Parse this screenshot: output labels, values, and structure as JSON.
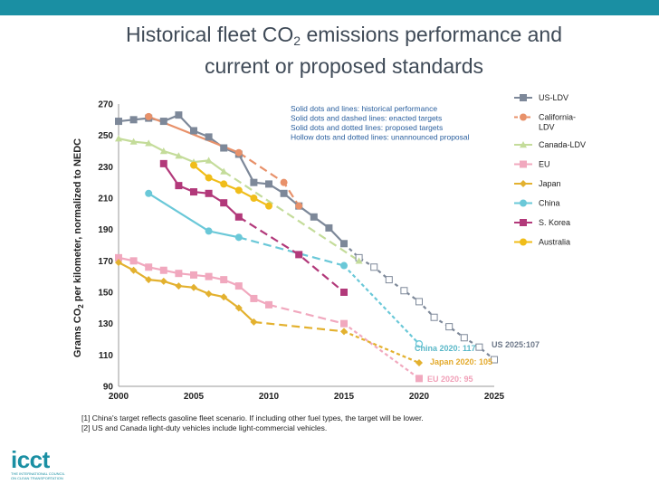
{
  "title": {
    "part1": "Historical fleet CO",
    "sub": "2",
    "part2": " emissions performance and",
    "line2": "current or proposed standards"
  },
  "colors": {
    "topbar": "#1a8fa3",
    "US-LDV": "#7d8899",
    "California-LDV": "#e8916a",
    "Canada-LDV": "#c4dc9a",
    "EU": "#f1a8be",
    "Japan": "#e3b12f",
    "China": "#6ac8d8",
    "S. Korea": "#b2397a",
    "Australia": "#f0bd1a"
  },
  "notes": [
    "Solid dots and lines: historical performance",
    "Solid dots and dashed lines: enacted targets",
    "Solid dots and dotted lines: proposed targets",
    "Hollow dots and dotted lines: unannounced proposal"
  ],
  "footnotes": [
    "[1] China's target reflects gasoline fleet scenario. If including other fuel types, the target will be lower.",
    "[2] US and Canada light-duty vehicles include light-commercial vehicles."
  ],
  "logo": {
    "word": "icct",
    "tagline": "THE INTERNATIONAL COUNCIL ON CLEAN TRANSPORTATION"
  },
  "chart_data": {
    "type": "line",
    "title": "",
    "ylabel_parts": [
      "Grams CO",
      "2",
      " per kilometer, normalized to NEDC"
    ],
    "xlim": [
      2000,
      2025
    ],
    "ylim": [
      90,
      270
    ],
    "xticks": [
      2000,
      2005,
      2010,
      2015,
      2020,
      2025
    ],
    "yticks": [
      90,
      110,
      130,
      150,
      170,
      190,
      210,
      230,
      250,
      270
    ],
    "grid": false,
    "legend_position": "right",
    "series": [
      {
        "name": "US-LDV",
        "marker": "square",
        "historical": [
          [
            2000,
            259
          ],
          [
            2001,
            260
          ],
          [
            2002,
            261
          ],
          [
            2003,
            259
          ],
          [
            2004,
            263
          ],
          [
            2005,
            253
          ],
          [
            2006,
            249
          ],
          [
            2007,
            242
          ],
          [
            2008,
            238
          ],
          [
            2009,
            220
          ],
          [
            2010,
            219
          ],
          [
            2011,
            213
          ],
          [
            2012,
            205
          ],
          [
            2013,
            198
          ],
          [
            2014,
            191
          ],
          [
            2015,
            181
          ]
        ],
        "enacted": [
          [
            2015,
            181
          ],
          [
            2016,
            172
          ],
          [
            2017,
            166
          ],
          [
            2018,
            158
          ],
          [
            2019,
            151
          ],
          [
            2020,
            144
          ],
          [
            2021,
            134
          ],
          [
            2022,
            128
          ],
          [
            2023,
            121
          ],
          [
            2024,
            115
          ],
          [
            2025,
            107
          ]
        ],
        "enacted_marker": "hollow"
      },
      {
        "name": "California-LDV",
        "marker": "circle",
        "historical": [
          [
            2002,
            262
          ],
          [
            2008,
            239
          ]
        ],
        "enacted": [
          [
            2008,
            239
          ],
          [
            2011,
            220
          ],
          [
            2012,
            205
          ]
        ]
      },
      {
        "name": "Canada-LDV",
        "marker": "triangle",
        "historical": [
          [
            2000,
            248
          ],
          [
            2001,
            246
          ],
          [
            2002,
            245
          ],
          [
            2003,
            240
          ],
          [
            2004,
            237
          ],
          [
            2005,
            233
          ],
          [
            2006,
            234
          ],
          [
            2007,
            227
          ]
        ],
        "enacted": [
          [
            2007,
            227
          ],
          [
            2016,
            170
          ]
        ]
      },
      {
        "name": "EU",
        "marker": "square",
        "historical": [
          [
            2000,
            172
          ],
          [
            2001,
            170
          ],
          [
            2002,
            166
          ],
          [
            2003,
            164
          ],
          [
            2004,
            162
          ],
          [
            2005,
            161
          ],
          [
            2006,
            160
          ],
          [
            2007,
            158
          ],
          [
            2008,
            154
          ],
          [
            2009,
            146
          ],
          [
            2010,
            142
          ]
        ],
        "enacted": [
          [
            2010,
            142
          ],
          [
            2015,
            130
          ]
        ],
        "proposed": [
          [
            2015,
            130
          ],
          [
            2020,
            95
          ]
        ]
      },
      {
        "name": "Japan",
        "marker": "diamond",
        "historical": [
          [
            2000,
            169
          ],
          [
            2001,
            164
          ],
          [
            2002,
            158
          ],
          [
            2003,
            157
          ],
          [
            2004,
            154
          ],
          [
            2005,
            153
          ],
          [
            2006,
            149
          ],
          [
            2007,
            147
          ],
          [
            2008,
            140
          ],
          [
            2009,
            131
          ]
        ],
        "enacted": [
          [
            2009,
            131
          ],
          [
            2015,
            125
          ]
        ],
        "proposed": [
          [
            2015,
            125
          ],
          [
            2020,
            105
          ]
        ]
      },
      {
        "name": "China",
        "marker": "circle",
        "historical": [
          [
            2002,
            213
          ],
          [
            2006,
            189
          ],
          [
            2008,
            185
          ]
        ],
        "enacted": [
          [
            2008,
            185
          ],
          [
            2015,
            167
          ]
        ],
        "proposed": [
          [
            2015,
            167
          ],
          [
            2020,
            117
          ]
        ],
        "proposed_marker": "hollow"
      },
      {
        "name": "S. Korea",
        "marker": "square",
        "historical": [
          [
            2003,
            232
          ],
          [
            2004,
            218
          ],
          [
            2005,
            214
          ],
          [
            2006,
            213
          ],
          [
            2007,
            207
          ],
          [
            2008,
            198
          ]
        ],
        "enacted": [
          [
            2008,
            198
          ],
          [
            2012,
            174
          ],
          [
            2015,
            150
          ]
        ]
      },
      {
        "name": "Australia",
        "marker": "circle",
        "historical": [
          [
            2005,
            231
          ],
          [
            2006,
            223
          ],
          [
            2007,
            219
          ],
          [
            2008,
            215
          ],
          [
            2009,
            210
          ],
          [
            2010,
            205
          ]
        ]
      }
    ],
    "annotations": [
      {
        "text": "US 2025:107",
        "series": "US-LDV"
      },
      {
        "text": "China 2020: 117",
        "series": "China"
      },
      {
        "text": "Japan 2020: 105",
        "series": "Japan"
      },
      {
        "text": "EU 2020: 95",
        "series": "EU"
      }
    ]
  }
}
